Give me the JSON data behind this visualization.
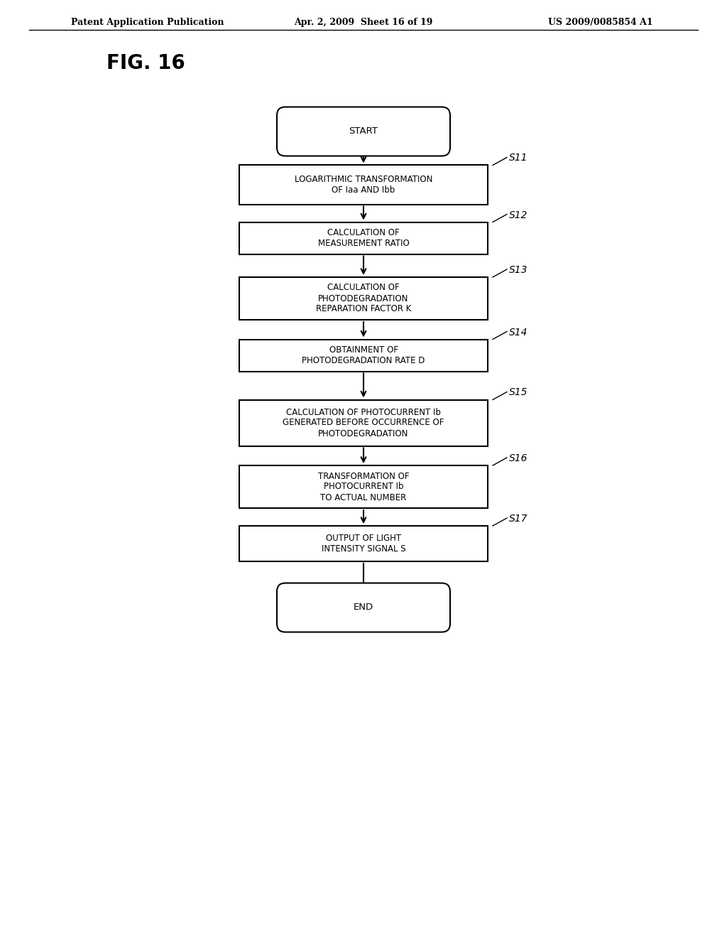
{
  "header_left": "Patent Application Publication",
  "header_mid": "Apr. 2, 2009  Sheet 16 of 19",
  "header_right": "US 2009/0085854 A1",
  "fig_label": "FIG. 16",
  "bg_color": "#ffffff",
  "box_color": "#ffffff",
  "box_edge_color": "#000000",
  "text_color": "#000000",
  "steps": [
    {
      "label": "START",
      "shape": "rounded",
      "tag": null
    },
    {
      "label": "LOGARITHMIC TRANSFORMATION\nOF Iaa AND Ibb",
      "shape": "rect",
      "tag": "S11"
    },
    {
      "label": "CALCULATION OF\nMEASUREMENT RATIO",
      "shape": "rect",
      "tag": "S12"
    },
    {
      "label": "CALCULATION OF\nPHOTODEGRADATION\nREPARATION FACTOR K",
      "shape": "rect",
      "tag": "S13"
    },
    {
      "label": "OBTAINMENT OF\nPHOTODEGRADATION RATE D",
      "shape": "rect",
      "tag": "S14"
    },
    {
      "label": "CALCULATION OF PHOTOCURRENT Ib\nGENERATED BEFORE OCCURRENCE OF\nPHOTODEGRADATION",
      "shape": "rect",
      "tag": "S15"
    },
    {
      "label": "TRANSFORMATION OF\nPHOTOCURRENT Ib\nTO ACTUAL NUMBER",
      "shape": "rect",
      "tag": "S16"
    },
    {
      "label": "OUTPUT OF LIGHT\nINTENSITY SIGNAL S",
      "shape": "rect",
      "tag": "S17"
    },
    {
      "label": "END",
      "shape": "rounded",
      "tag": null
    }
  ]
}
